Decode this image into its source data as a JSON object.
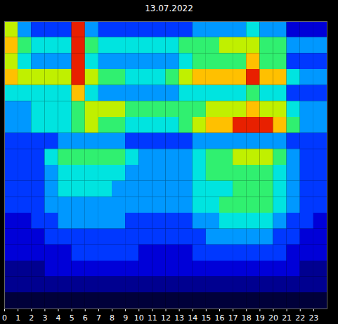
{
  "chart_data": {
    "type": "heatmap",
    "title": "13.07.2022",
    "x": [
      0,
      1,
      2,
      3,
      4,
      5,
      6,
      7,
      8,
      9,
      10,
      11,
      12,
      13,
      14,
      15,
      16,
      17,
      18,
      19,
      20,
      21,
      22,
      23
    ],
    "xlim": [
      0,
      24
    ],
    "xticks": [
      0,
      1,
      2,
      3,
      4,
      5,
      6,
      7,
      8,
      9,
      10,
      11,
      12,
      13,
      14,
      15,
      16,
      17,
      18,
      19,
      20,
      21,
      22,
      23
    ],
    "tick_labels": "x",
    "color_range": [
      0,
      10
    ],
    "cells": [
      [
        7,
        4,
        3,
        3,
        3,
        9,
        4,
        3,
        3,
        3,
        3,
        3,
        3,
        3,
        4,
        4,
        4,
        4,
        5,
        4,
        4,
        2,
        2,
        2
      ],
      [
        8,
        6,
        5,
        5,
        5,
        9,
        6,
        5,
        5,
        5,
        5,
        5,
        5,
        6,
        6,
        6,
        7,
        7,
        7,
        6,
        6,
        4,
        4,
        4
      ],
      [
        7,
        5,
        4,
        4,
        4,
        9,
        5,
        4,
        4,
        4,
        4,
        4,
        4,
        5,
        6,
        6,
        6,
        6,
        8,
        6,
        6,
        3,
        3,
        3
      ],
      [
        8,
        7,
        7,
        7,
        7,
        9,
        7,
        6,
        6,
        5,
        5,
        5,
        6,
        7,
        8,
        8,
        8,
        8,
        9,
        8,
        8,
        5,
        4,
        4
      ],
      [
        5,
        5,
        5,
        5,
        5,
        8,
        5,
        4,
        4,
        4,
        4,
        4,
        4,
        5,
        5,
        5,
        5,
        5,
        6,
        5,
        5,
        3,
        3,
        3
      ],
      [
        4,
        4,
        5,
        5,
        5,
        6,
        7,
        7,
        7,
        6,
        6,
        6,
        6,
        6,
        6,
        7,
        7,
        7,
        8,
        7,
        7,
        5,
        4,
        4
      ],
      [
        4,
        4,
        5,
        5,
        5,
        6,
        7,
        6,
        6,
        5,
        5,
        5,
        5,
        6,
        7,
        8,
        8,
        9,
        9,
        9,
        8,
        6,
        4,
        4
      ],
      [
        3,
        3,
        3,
        3,
        4,
        4,
        4,
        4,
        4,
        3,
        3,
        3,
        3,
        3,
        4,
        4,
        4,
        4,
        4,
        4,
        4,
        3,
        3,
        3
      ],
      [
        3,
        3,
        3,
        5,
        6,
        6,
        6,
        6,
        6,
        5,
        4,
        4,
        4,
        4,
        5,
        6,
        6,
        7,
        7,
        7,
        6,
        4,
        3,
        3
      ],
      [
        3,
        3,
        3,
        4,
        5,
        5,
        5,
        5,
        5,
        4,
        4,
        4,
        4,
        4,
        5,
        6,
        6,
        6,
        6,
        6,
        5,
        4,
        3,
        3
      ],
      [
        3,
        3,
        3,
        4,
        5,
        5,
        5,
        5,
        4,
        4,
        4,
        4,
        4,
        4,
        5,
        5,
        5,
        6,
        6,
        6,
        5,
        4,
        3,
        3
      ],
      [
        3,
        3,
        3,
        4,
        4,
        4,
        4,
        4,
        4,
        4,
        4,
        4,
        4,
        4,
        5,
        5,
        6,
        6,
        6,
        6,
        5,
        4,
        3,
        3
      ],
      [
        2,
        2,
        3,
        3,
        4,
        4,
        4,
        4,
        4,
        3,
        3,
        3,
        3,
        3,
        4,
        4,
        5,
        5,
        5,
        5,
        4,
        3,
        3,
        2
      ],
      [
        2,
        2,
        2,
        3,
        3,
        3,
        3,
        3,
        3,
        3,
        3,
        3,
        3,
        3,
        3,
        4,
        4,
        4,
        4,
        4,
        3,
        3,
        2,
        2
      ],
      [
        2,
        2,
        2,
        2,
        2,
        3,
        3,
        3,
        3,
        3,
        2,
        2,
        2,
        2,
        3,
        3,
        3,
        3,
        3,
        3,
        3,
        2,
        2,
        2
      ],
      [
        1,
        1,
        1,
        2,
        2,
        2,
        2,
        2,
        2,
        2,
        2,
        2,
        2,
        2,
        2,
        2,
        2,
        2,
        2,
        2,
        2,
        2,
        1,
        1
      ],
      [
        1,
        1,
        1,
        1,
        1,
        1,
        1,
        1,
        1,
        1,
        1,
        1,
        1,
        1,
        1,
        1,
        1,
        1,
        1,
        1,
        1,
        1,
        1,
        1
      ],
      [
        0,
        0,
        0,
        0,
        0,
        0,
        0,
        0,
        0,
        0,
        0,
        0,
        0,
        0,
        0,
        0,
        0,
        0,
        0,
        0,
        0,
        0,
        0,
        0
      ]
    ]
  }
}
